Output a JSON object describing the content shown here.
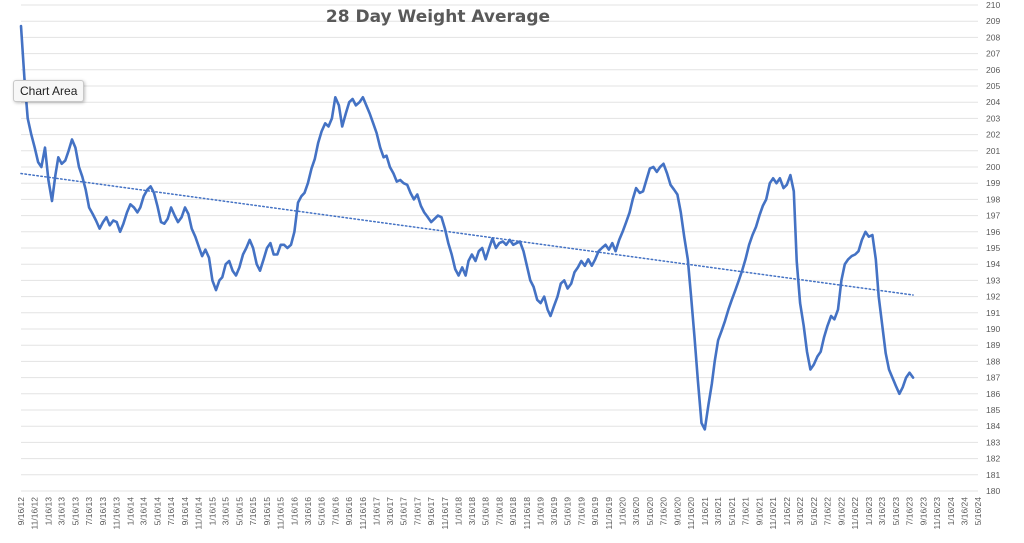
{
  "chart_data": {
    "type": "line",
    "title": "28 Day Weight Average",
    "xlabel": "",
    "ylabel": "",
    "ylim": [
      180,
      210
    ],
    "y_ticks": [
      180,
      181,
      182,
      183,
      184,
      185,
      186,
      187,
      188,
      189,
      190,
      191,
      192,
      193,
      194,
      195,
      196,
      197,
      198,
      199,
      200,
      201,
      202,
      203,
      204,
      205,
      206,
      207,
      208,
      209,
      210
    ],
    "y_axis_side": "right",
    "grid": true,
    "legend": "none",
    "x_tick_labels": [
      "9/16/12",
      "11/16/12",
      "1/16/13",
      "3/16/13",
      "5/16/13",
      "7/16/13",
      "9/16/13",
      "11/16/13",
      "1/16/14",
      "3/16/14",
      "5/16/14",
      "7/16/14",
      "9/16/14",
      "11/16/14",
      "1/16/15",
      "3/16/15",
      "5/16/15",
      "7/16/15",
      "9/16/15",
      "11/16/15",
      "1/16/16",
      "3/16/16",
      "5/16/16",
      "7/16/16",
      "9/16/16",
      "11/16/16",
      "1/16/17",
      "3/16/17",
      "5/16/17",
      "7/16/17",
      "9/16/17",
      "11/16/17",
      "1/16/18",
      "3/16/18",
      "5/16/18",
      "7/16/18",
      "9/16/18",
      "11/16/18",
      "1/16/19",
      "3/16/19",
      "5/16/19",
      "7/16/19",
      "9/16/19",
      "11/16/19",
      "1/16/20",
      "3/16/20",
      "5/16/20",
      "7/16/20",
      "9/16/20",
      "11/16/20",
      "1/16/21",
      "3/16/21",
      "5/16/21",
      "7/16/21",
      "9/16/21",
      "11/16/21",
      "1/16/22",
      "3/16/22",
      "5/16/22",
      "7/16/22",
      "9/16/22",
      "11/16/22",
      "1/16/23",
      "3/16/23",
      "5/16/23",
      "7/16/23",
      "9/16/23",
      "11/16/23",
      "1/16/24",
      "3/16/24",
      "5/16/24"
    ],
    "series": [
      {
        "style": "solid",
        "color": "#4472C4",
        "points": [
          [
            "9/16/12",
            208.7
          ],
          [
            "10/1/12",
            205.5
          ],
          [
            "10/16/12",
            203.0
          ],
          [
            "11/1/12",
            202.0
          ],
          [
            "11/16/12",
            201.2
          ],
          [
            "12/1/12",
            200.3
          ],
          [
            "12/16/12",
            200.0
          ],
          [
            "1/1/13",
            201.2
          ],
          [
            "1/16/13",
            199.2
          ],
          [
            "2/1/13",
            197.9
          ],
          [
            "2/16/13",
            199.5
          ],
          [
            "3/1/13",
            200.6
          ],
          [
            "3/16/13",
            200.2
          ],
          [
            "4/1/13",
            200.4
          ],
          [
            "4/16/13",
            201.0
          ],
          [
            "5/1/13",
            201.7
          ],
          [
            "5/16/13",
            201.2
          ],
          [
            "6/1/13",
            200.0
          ],
          [
            "6/16/13",
            199.4
          ],
          [
            "7/1/13",
            198.6
          ],
          [
            "7/16/13",
            197.5
          ],
          [
            "8/1/13",
            197.1
          ],
          [
            "8/16/13",
            196.7
          ],
          [
            "9/1/13",
            196.2
          ],
          [
            "9/16/13",
            196.6
          ],
          [
            "10/1/13",
            196.9
          ],
          [
            "10/16/13",
            196.4
          ],
          [
            "11/1/13",
            196.7
          ],
          [
            "11/16/13",
            196.6
          ],
          [
            "12/1/13",
            196.0
          ],
          [
            "12/16/13",
            196.5
          ],
          [
            "1/1/14",
            197.2
          ],
          [
            "1/16/14",
            197.7
          ],
          [
            "2/1/14",
            197.5
          ],
          [
            "2/16/14",
            197.2
          ],
          [
            "3/1/14",
            197.5
          ],
          [
            "3/16/14",
            198.2
          ],
          [
            "4/1/14",
            198.6
          ],
          [
            "4/16/14",
            198.8
          ],
          [
            "5/1/14",
            198.4
          ],
          [
            "5/16/14",
            197.6
          ],
          [
            "6/1/14",
            196.6
          ],
          [
            "6/16/14",
            196.5
          ],
          [
            "7/1/14",
            196.8
          ],
          [
            "7/16/14",
            197.5
          ],
          [
            "8/1/14",
            197.0
          ],
          [
            "8/16/14",
            196.6
          ],
          [
            "9/1/14",
            196.9
          ],
          [
            "9/16/14",
            197.5
          ],
          [
            "10/1/14",
            197.1
          ],
          [
            "10/16/14",
            196.2
          ],
          [
            "11/1/14",
            195.7
          ],
          [
            "11/16/14",
            195.1
          ],
          [
            "12/1/14",
            194.5
          ],
          [
            "12/16/14",
            194.9
          ],
          [
            "1/1/15",
            194.4
          ],
          [
            "1/16/15",
            193.0
          ],
          [
            "2/1/15",
            192.4
          ],
          [
            "2/16/15",
            193.0
          ],
          [
            "3/1/15",
            193.2
          ],
          [
            "3/16/15",
            194.0
          ],
          [
            "4/1/15",
            194.2
          ],
          [
            "4/16/15",
            193.6
          ],
          [
            "5/1/15",
            193.3
          ],
          [
            "5/16/15",
            193.8
          ],
          [
            "6/1/15",
            194.6
          ],
          [
            "6/16/15",
            195.0
          ],
          [
            "7/1/15",
            195.5
          ],
          [
            "7/16/15",
            195.0
          ],
          [
            "8/1/15",
            194.0
          ],
          [
            "8/16/15",
            193.6
          ],
          [
            "9/1/15",
            194.3
          ],
          [
            "9/16/15",
            195.0
          ],
          [
            "10/1/15",
            195.3
          ],
          [
            "10/16/15",
            194.6
          ],
          [
            "11/1/15",
            194.6
          ],
          [
            "11/16/15",
            195.2
          ],
          [
            "12/1/15",
            195.2
          ],
          [
            "12/16/15",
            195.0
          ],
          [
            "1/1/16",
            195.2
          ],
          [
            "1/16/16",
            196.0
          ],
          [
            "2/1/16",
            197.8
          ],
          [
            "2/16/16",
            198.2
          ],
          [
            "3/1/16",
            198.4
          ],
          [
            "3/16/16",
            199.0
          ],
          [
            "4/1/16",
            199.9
          ],
          [
            "4/16/16",
            200.5
          ],
          [
            "5/1/16",
            201.5
          ],
          [
            "5/16/16",
            202.2
          ],
          [
            "6/1/16",
            202.7
          ],
          [
            "6/16/16",
            202.5
          ],
          [
            "7/1/16",
            203.0
          ],
          [
            "7/16/16",
            204.3
          ],
          [
            "8/1/16",
            203.8
          ],
          [
            "8/16/16",
            202.5
          ],
          [
            "9/1/16",
            203.3
          ],
          [
            "9/16/16",
            204.0
          ],
          [
            "10/1/16",
            204.2
          ],
          [
            "10/16/16",
            203.8
          ],
          [
            "11/1/16",
            204.0
          ],
          [
            "11/16/16",
            204.3
          ],
          [
            "12/1/16",
            203.8
          ],
          [
            "12/16/16",
            203.3
          ],
          [
            "1/1/17",
            202.7
          ],
          [
            "1/16/17",
            202.1
          ],
          [
            "2/1/17",
            201.2
          ],
          [
            "2/16/17",
            200.6
          ],
          [
            "3/1/17",
            200.7
          ],
          [
            "3/16/17",
            200.0
          ],
          [
            "4/1/17",
            199.6
          ],
          [
            "4/16/17",
            199.1
          ],
          [
            "5/1/17",
            199.2
          ],
          [
            "5/16/17",
            199.0
          ],
          [
            "6/1/17",
            198.9
          ],
          [
            "6/16/17",
            198.4
          ],
          [
            "7/1/17",
            198.0
          ],
          [
            "7/16/17",
            198.3
          ],
          [
            "8/1/17",
            197.6
          ],
          [
            "8/16/17",
            197.2
          ],
          [
            "9/1/17",
            196.9
          ],
          [
            "9/16/17",
            196.6
          ],
          [
            "10/1/17",
            196.8
          ],
          [
            "10/16/17",
            197.0
          ],
          [
            "11/1/17",
            196.9
          ],
          [
            "11/16/17",
            196.2
          ],
          [
            "12/1/17",
            195.3
          ],
          [
            "12/16/17",
            194.6
          ],
          [
            "1/1/18",
            193.7
          ],
          [
            "1/16/18",
            193.3
          ],
          [
            "2/1/18",
            193.8
          ],
          [
            "2/16/18",
            193.3
          ],
          [
            "3/1/18",
            194.2
          ],
          [
            "3/16/18",
            194.6
          ],
          [
            "4/1/18",
            194.2
          ],
          [
            "4/16/18",
            194.8
          ],
          [
            "5/1/18",
            195.0
          ],
          [
            "5/16/18",
            194.3
          ],
          [
            "6/1/18",
            195.0
          ],
          [
            "6/16/18",
            195.6
          ],
          [
            "7/1/18",
            195.0
          ],
          [
            "7/16/18",
            195.3
          ],
          [
            "8/1/18",
            195.4
          ],
          [
            "8/16/18",
            195.2
          ],
          [
            "9/1/18",
            195.5
          ],
          [
            "9/16/18",
            195.2
          ],
          [
            "10/1/18",
            195.3
          ],
          [
            "10/16/18",
            195.4
          ],
          [
            "11/1/18",
            194.8
          ],
          [
            "11/16/18",
            193.9
          ],
          [
            "12/1/18",
            193.0
          ],
          [
            "12/16/18",
            192.6
          ],
          [
            "1/1/19",
            191.8
          ],
          [
            "1/16/19",
            191.6
          ],
          [
            "2/1/19",
            192.0
          ],
          [
            "2/16/19",
            191.2
          ],
          [
            "3/1/19",
            190.8
          ],
          [
            "3/16/19",
            191.4
          ],
          [
            "4/1/19",
            192.0
          ],
          [
            "4/16/19",
            192.8
          ],
          [
            "5/1/19",
            193.0
          ],
          [
            "5/16/19",
            192.5
          ],
          [
            "6/1/19",
            192.8
          ],
          [
            "6/16/19",
            193.5
          ],
          [
            "7/1/19",
            193.8
          ],
          [
            "7/16/19",
            194.2
          ],
          [
            "8/1/19",
            193.9
          ],
          [
            "8/16/19",
            194.3
          ],
          [
            "9/1/19",
            193.9
          ],
          [
            "9/16/19",
            194.3
          ],
          [
            "10/1/19",
            194.8
          ],
          [
            "10/16/19",
            195.0
          ],
          [
            "11/1/19",
            195.2
          ],
          [
            "11/16/19",
            194.9
          ],
          [
            "12/1/19",
            195.3
          ],
          [
            "12/16/19",
            194.8
          ],
          [
            "1/1/20",
            195.5
          ],
          [
            "1/16/20",
            196.0
          ],
          [
            "2/1/20",
            196.6
          ],
          [
            "2/16/20",
            197.2
          ],
          [
            "3/1/20",
            198.0
          ],
          [
            "3/16/20",
            198.7
          ],
          [
            "4/1/20",
            198.4
          ],
          [
            "4/16/20",
            198.5
          ],
          [
            "5/1/20",
            199.2
          ],
          [
            "5/16/20",
            199.9
          ],
          [
            "6/1/20",
            200.0
          ],
          [
            "6/16/20",
            199.7
          ],
          [
            "7/1/20",
            200.0
          ],
          [
            "7/16/20",
            200.2
          ],
          [
            "8/1/20",
            199.6
          ],
          [
            "8/16/20",
            198.9
          ],
          [
            "9/1/20",
            198.6
          ],
          [
            "9/16/20",
            198.3
          ],
          [
            "10/1/20",
            197.2
          ],
          [
            "10/16/20",
            195.7
          ],
          [
            "11/1/20",
            194.3
          ],
          [
            "11/16/20",
            192.0
          ],
          [
            "12/1/20",
            189.5
          ],
          [
            "12/16/20",
            186.8
          ],
          [
            "1/1/21",
            184.2
          ],
          [
            "1/16/21",
            183.8
          ],
          [
            "2/1/21",
            185.3
          ],
          [
            "2/16/21",
            186.6
          ],
          [
            "3/1/21",
            188.0
          ],
          [
            "3/16/21",
            189.3
          ],
          [
            "4/1/21",
            189.9
          ],
          [
            "4/16/21",
            190.5
          ],
          [
            "5/1/21",
            191.2
          ],
          [
            "5/16/21",
            191.8
          ],
          [
            "6/1/21",
            192.4
          ],
          [
            "6/16/21",
            193.0
          ],
          [
            "7/1/21",
            193.6
          ],
          [
            "7/16/21",
            194.3
          ],
          [
            "8/1/21",
            195.2
          ],
          [
            "8/16/21",
            195.8
          ],
          [
            "9/1/21",
            196.3
          ],
          [
            "9/16/21",
            197.0
          ],
          [
            "10/1/21",
            197.6
          ],
          [
            "10/16/21",
            198.0
          ],
          [
            "11/1/21",
            199.0
          ],
          [
            "11/16/21",
            199.3
          ],
          [
            "12/1/21",
            199.0
          ],
          [
            "12/16/21",
            199.3
          ],
          [
            "1/1/22",
            198.7
          ],
          [
            "1/16/22",
            198.9
          ],
          [
            "2/1/22",
            199.5
          ],
          [
            "2/16/22",
            198.5
          ],
          [
            "3/1/22",
            194.2
          ],
          [
            "3/16/22",
            191.6
          ],
          [
            "4/1/22",
            190.2
          ],
          [
            "4/16/22",
            188.6
          ],
          [
            "5/1/22",
            187.5
          ],
          [
            "5/16/22",
            187.8
          ],
          [
            "6/1/22",
            188.3
          ],
          [
            "6/16/22",
            188.6
          ],
          [
            "7/1/22",
            189.5
          ],
          [
            "7/16/22",
            190.2
          ],
          [
            "8/1/22",
            190.8
          ],
          [
            "8/16/22",
            190.6
          ],
          [
            "9/1/22",
            191.2
          ],
          [
            "9/16/22",
            193.0
          ],
          [
            "10/1/22",
            194.0
          ],
          [
            "10/16/22",
            194.3
          ],
          [
            "11/1/22",
            194.5
          ],
          [
            "11/16/22",
            194.6
          ],
          [
            "12/1/22",
            194.8
          ],
          [
            "12/16/22",
            195.5
          ],
          [
            "1/1/23",
            196.0
          ],
          [
            "1/16/23",
            195.7
          ],
          [
            "2/1/23",
            195.8
          ],
          [
            "2/16/23",
            194.3
          ],
          [
            "3/1/23",
            192.0
          ],
          [
            "3/16/23",
            190.3
          ],
          [
            "4/1/23",
            188.5
          ],
          [
            "4/16/23",
            187.5
          ],
          [
            "5/1/23",
            187.0
          ],
          [
            "5/16/23",
            186.5
          ],
          [
            "6/1/23",
            186.0
          ],
          [
            "6/16/23",
            186.4
          ],
          [
            "7/1/23",
            187.0
          ],
          [
            "7/16/23",
            187.3
          ],
          [
            "8/1/23",
            187.0
          ]
        ]
      },
      {
        "style": "dotted",
        "trendline": "linear",
        "color": "#4472C4",
        "points": [
          [
            "9/16/12",
            199.6
          ],
          [
            "8/1/23",
            192.1
          ]
        ]
      }
    ]
  },
  "tooltip": {
    "text": "Chart Area"
  }
}
